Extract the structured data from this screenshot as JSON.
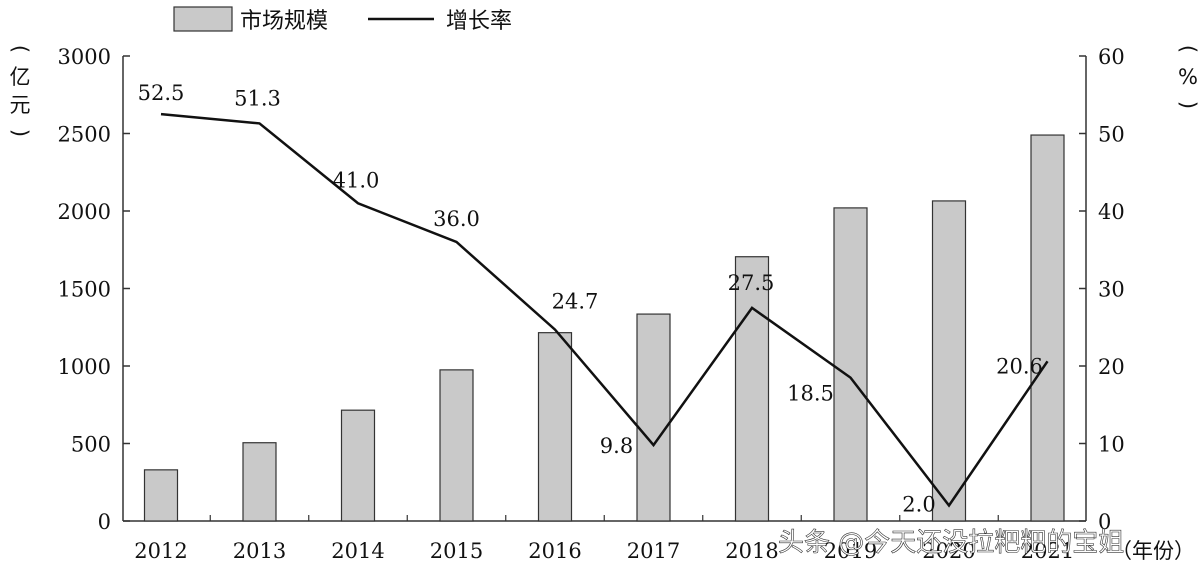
{
  "chart_data": {
    "type": "bar+line",
    "categories": [
      "2012",
      "2013",
      "2014",
      "2015",
      "2016",
      "2017",
      "2018",
      "2019",
      "2020",
      "2021"
    ],
    "series": [
      {
        "name": "市场规模",
        "type": "bar",
        "axis": "left",
        "values": [
          330,
          505,
          715,
          975,
          1215,
          1335,
          1705,
          2020,
          2065,
          2490
        ]
      },
      {
        "name": "增长率",
        "type": "line",
        "axis": "right",
        "values": [
          52.5,
          51.3,
          41.0,
          36.0,
          24.7,
          9.8,
          27.5,
          18.5,
          2.0,
          20.6
        ],
        "labels": [
          "52.5",
          "51.3",
          "41.0",
          "36.0",
          "24.7",
          "9.8",
          "27.5",
          "18.5",
          "2.0",
          "20.6"
        ]
      }
    ],
    "left_axis": {
      "label": "（亿元）",
      "ylim": [
        0,
        3000
      ],
      "ticks": [
        "0",
        "500",
        "1000",
        "1500",
        "2000",
        "2500",
        "3000"
      ]
    },
    "right_axis": {
      "label": "（%）",
      "ylim": [
        0,
        60
      ],
      "ticks": [
        "0",
        "10",
        "20",
        "30",
        "40",
        "50",
        "60"
      ]
    },
    "x_unit": "（年份）",
    "legend": {
      "position": "top-left",
      "items": [
        "市场规模",
        "增长率"
      ]
    },
    "colors": {
      "bar_fill": "#c9c9c9",
      "bar_stroke": "#333333",
      "line": "#111111",
      "axis": "#333333"
    }
  },
  "watermark": "头条 @今天还没拉粑粑的宝姐"
}
